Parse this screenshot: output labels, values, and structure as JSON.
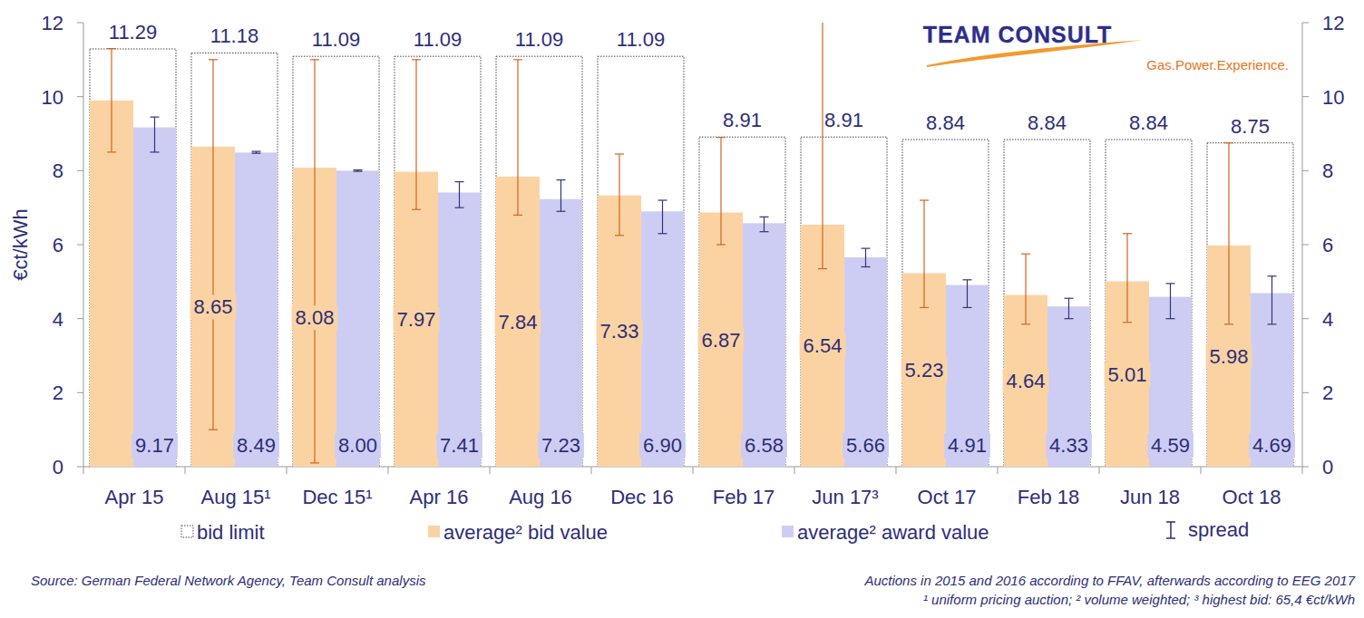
{
  "chart_data": {
    "type": "bar",
    "y_label": "€ct/kWh",
    "categories": [
      "Apr 15",
      "Aug 15¹",
      "Dec 15¹",
      "Apr 16",
      "Aug 16",
      "Dec 16",
      "Feb 17",
      "Jun 17³",
      "Oct 17",
      "Feb 18",
      "Jun 18",
      "Oct 18"
    ],
    "series": [
      {
        "name": "bid limit",
        "color": "#444444",
        "line_style": "dotted",
        "values": [
          11.29,
          11.18,
          11.09,
          11.09,
          11.09,
          11.09,
          8.91,
          8.91,
          8.84,
          8.84,
          8.84,
          8.75
        ],
        "value_labels": [
          "11.29",
          "11.18",
          "11.09",
          "11.09",
          "11.09",
          "11.09",
          "8.91",
          "8.91",
          "8.84",
          "8.84",
          "8.84",
          "8.75"
        ]
      },
      {
        "name": "average² bid value",
        "color": "#fbd3a3",
        "values": [
          9.9,
          8.65,
          8.08,
          7.97,
          7.84,
          7.33,
          6.87,
          6.54,
          5.23,
          4.64,
          5.01,
          5.98
        ],
        "value_labels": [
          null,
          "8.65",
          "8.08",
          "7.97",
          "7.84",
          "7.33",
          "6.87",
          "6.54",
          "5.23",
          "4.64",
          "5.01",
          "5.98"
        ],
        "spread_color": "#d2641e",
        "spread_low": [
          8.5,
          1.0,
          0.1,
          6.95,
          6.8,
          6.25,
          6.0,
          5.35,
          4.3,
          3.85,
          3.9,
          3.85
        ],
        "spread_high": [
          11.3,
          11.0,
          11.0,
          11.0,
          11.0,
          8.45,
          8.9,
          65.4,
          7.2,
          5.75,
          6.3,
          8.75
        ]
      },
      {
        "name": "average² award value",
        "color": "#cdcdf3",
        "values": [
          9.17,
          8.49,
          8.0,
          7.41,
          7.23,
          6.9,
          6.58,
          5.66,
          4.91,
          4.33,
          4.59,
          4.69
        ],
        "value_labels": [
          "9.17",
          "8.49",
          "8.00",
          "7.41",
          "7.23",
          "6.90",
          "6.58",
          "5.66",
          "4.91",
          "4.33",
          "4.59",
          "4.69"
        ],
        "spread_color": "#33337a",
        "spread_low": [
          8.5,
          8.47,
          7.98,
          7.0,
          6.9,
          6.3,
          6.35,
          5.4,
          4.3,
          4.0,
          4.0,
          3.85
        ],
        "spread_high": [
          9.45,
          8.52,
          8.02,
          7.7,
          7.75,
          7.2,
          6.75,
          5.9,
          5.05,
          4.55,
          4.95,
          5.15
        ]
      }
    ],
    "spread_label": "spread",
    "ylim": [
      0,
      12
    ],
    "yticks": [
      0,
      2,
      4,
      6,
      8,
      10,
      12
    ],
    "y2lim": [
      0,
      12
    ],
    "y2ticks": [
      0,
      2,
      4,
      6,
      8,
      10,
      12
    ],
    "data_labels": true,
    "grid": false,
    "legend": "bottom",
    "annotations": [
      "TEAM CONSULT",
      "Gas.Power.Experience.",
      "Source: German Federal Network Agency, Team Consult analysis",
      "Auctions in 2015 and 2016 according to FFAV, afterwards according to EEG 2017",
      "¹ uniform pricing auction; ² volume weighted; ³ highest bid: 65,4 €ct/kWh"
    ]
  }
}
